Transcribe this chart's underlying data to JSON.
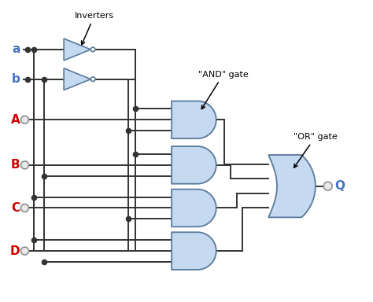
{
  "bg_color": "#ffffff",
  "gate_fill": "#c5d9f1",
  "gate_edge": "#5a7a9a",
  "wire_color": "#333333",
  "label_a_color": "#4472c4",
  "label_b_color": "#4472c4",
  "label_ABCD_color": "#cc0000",
  "label_Q_color": "#4472c4",
  "inv_fill": "#c5d9f1",
  "inv_edge": "#5a7a9a",
  "annotation_inv": "Inverters",
  "annotation_and": "\"AND\" gate",
  "annotation_or": "\"OR\" gate",
  "font_size_labels": 11,
  "font_size_annot": 8
}
